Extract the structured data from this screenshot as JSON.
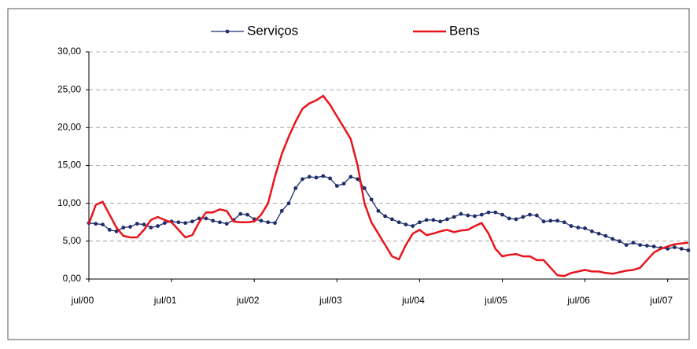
{
  "chart_data": {
    "type": "line",
    "categories": [
      "jul/00",
      null,
      null,
      null,
      null,
      null,
      null,
      null,
      null,
      null,
      null,
      null,
      "jul/01",
      null,
      null,
      null,
      null,
      null,
      null,
      null,
      null,
      null,
      null,
      null,
      "jul/02",
      null,
      null,
      null,
      null,
      null,
      null,
      null,
      null,
      null,
      null,
      null,
      "jul/03",
      null,
      null,
      null,
      null,
      null,
      null,
      null,
      null,
      null,
      null,
      null,
      "jul/04",
      null,
      null,
      null,
      null,
      null,
      null,
      null,
      null,
      null,
      null,
      null,
      "jul/05",
      null,
      null,
      null,
      null,
      null,
      null,
      null,
      null,
      null,
      null,
      null,
      "jul/06",
      null,
      null,
      null,
      null,
      null,
      null,
      null,
      null,
      null,
      null,
      null,
      "jul/07",
      null,
      null,
      null
    ],
    "series": [
      {
        "name": "Serviços",
        "color": "#1f2d6b",
        "marker": true,
        "values": [
          7.4,
          7.3,
          7.2,
          6.5,
          6.3,
          6.8,
          6.9,
          7.3,
          7.2,
          6.8,
          7.0,
          7.4,
          7.6,
          7.5,
          7.4,
          7.6,
          8.0,
          8.0,
          7.7,
          7.5,
          7.3,
          7.8,
          8.6,
          8.5,
          7.9,
          7.7,
          7.5,
          7.4,
          9.0,
          10.0,
          12.0,
          13.2,
          13.5,
          13.4,
          13.6,
          13.3,
          12.3,
          12.6,
          13.5,
          13.2,
          12.0,
          10.5,
          9.0,
          8.3,
          7.9,
          7.5,
          7.2,
          7.0,
          7.5,
          7.8,
          7.8,
          7.6,
          7.9,
          8.2,
          8.6,
          8.4,
          8.3,
          8.5,
          8.8,
          8.8,
          8.5,
          8.0,
          7.9,
          8.2,
          8.5,
          8.4,
          7.6,
          7.7,
          7.7,
          7.5,
          7.0,
          6.8,
          6.7,
          6.3,
          6.0,
          5.7,
          5.3,
          5.0,
          4.5,
          4.8,
          4.5,
          4.4,
          4.3,
          4.1,
          4.0,
          4.2,
          4.0,
          3.8
        ]
      },
      {
        "name": "Bens",
        "color": "#e8141b",
        "marker": false,
        "values": [
          7.3,
          9.8,
          10.2,
          8.5,
          6.8,
          5.7,
          5.5,
          5.5,
          6.5,
          7.8,
          8.2,
          7.8,
          7.5,
          6.5,
          5.5,
          5.8,
          7.5,
          8.8,
          8.8,
          9.2,
          9.0,
          7.6,
          7.5,
          7.5,
          7.6,
          8.5,
          10.0,
          13.5,
          16.5,
          18.8,
          20.8,
          22.5,
          23.2,
          23.6,
          24.2,
          23.0,
          21.5,
          20.0,
          18.5,
          15.0,
          10.0,
          7.5,
          6.0,
          4.5,
          3.0,
          2.6,
          4.5,
          6.0,
          6.5,
          5.8,
          6.0,
          6.3,
          6.5,
          6.2,
          6.4,
          6.5,
          7.0,
          7.4,
          6.0,
          4.0,
          3.0,
          3.2,
          3.3,
          3.0,
          3.0,
          2.5,
          2.5,
          1.5,
          0.5,
          0.4,
          0.8,
          1.0,
          1.2,
          1.0,
          1.0,
          0.8,
          0.7,
          0.9,
          1.1,
          1.2,
          1.5,
          2.5,
          3.5,
          4.0,
          4.3,
          4.6,
          4.7,
          4.8
        ]
      }
    ],
    "ylim": [
      0,
      30
    ],
    "yticks": [
      {
        "value": 0,
        "label": "0,00"
      },
      {
        "value": 5,
        "label": "5,00"
      },
      {
        "value": 10,
        "label": "10,00"
      },
      {
        "value": 15,
        "label": "15,00"
      },
      {
        "value": 20,
        "label": "20,00"
      },
      {
        "value": 25,
        "label": "25,00"
      },
      {
        "value": 30,
        "label": "30,00"
      }
    ],
    "grid": true,
    "legend": "top"
  }
}
